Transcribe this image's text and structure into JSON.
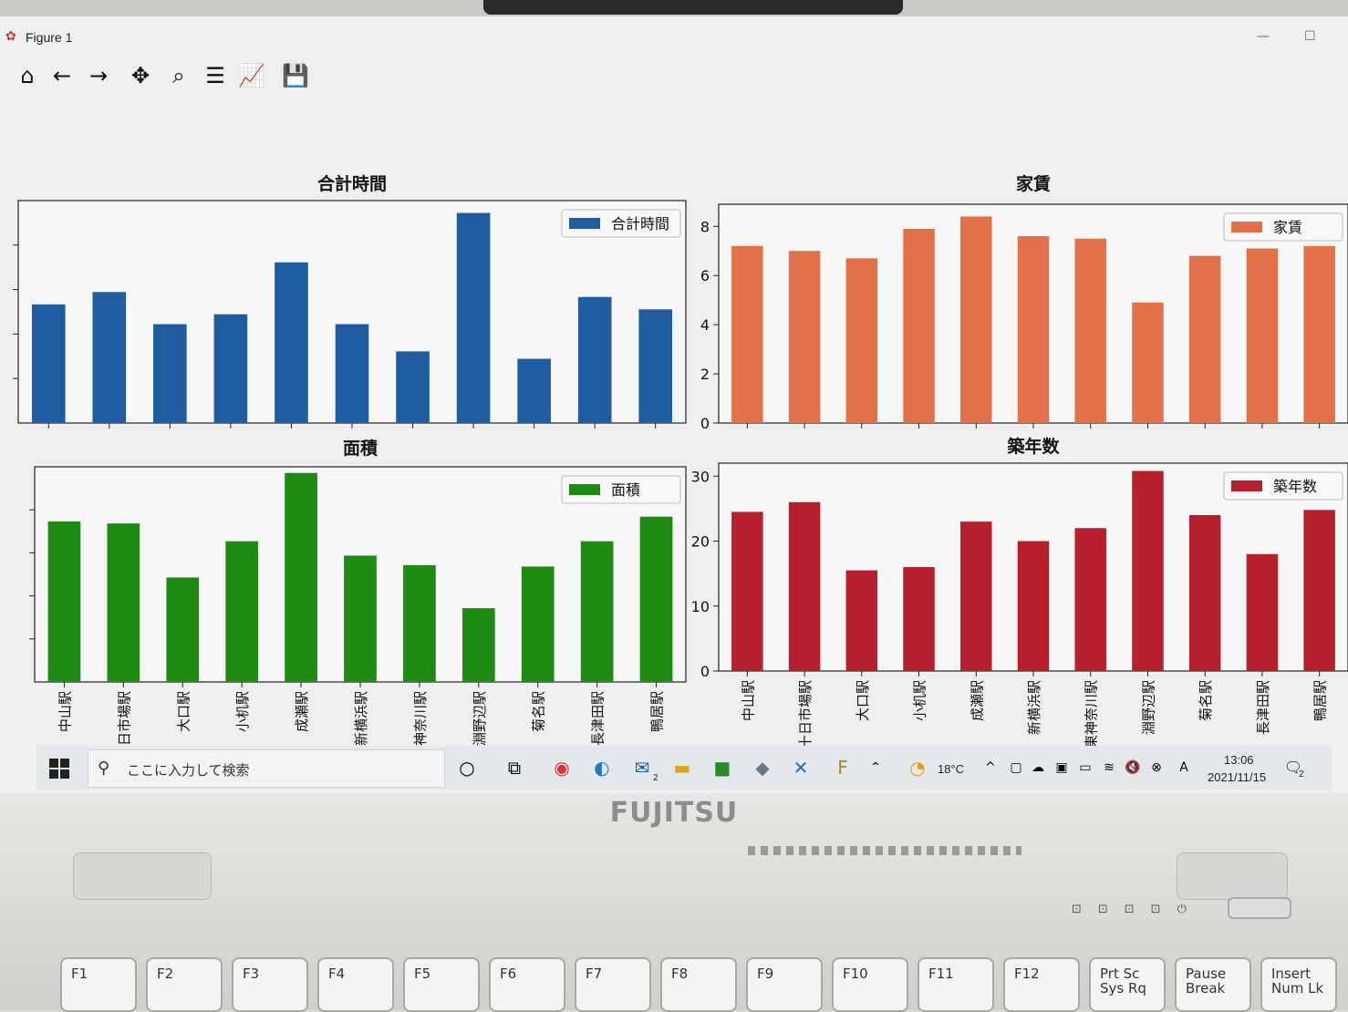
{
  "window": {
    "title": "Figure 1",
    "toolbar": [
      {
        "name": "home-icon",
        "glyph": "⌂"
      },
      {
        "name": "back-arrow-icon",
        "glyph": "←"
      },
      {
        "name": "forward-arrow-icon",
        "glyph": "→"
      },
      {
        "name": "pan-icon",
        "glyph": "✥"
      },
      {
        "name": "zoom-icon",
        "glyph": "⌕"
      },
      {
        "name": "configure-subplots-icon",
        "glyph": "☰"
      },
      {
        "name": "edit-axis-icon",
        "glyph": "📈"
      },
      {
        "name": "save-icon",
        "glyph": "💾"
      }
    ]
  },
  "chart_data": [
    {
      "type": "bar",
      "title": "合計時間",
      "legend": "合計時間",
      "legend_position": "top-right",
      "color": "#1f5da0",
      "categories": [
        "中山駅",
        "十日市場駅",
        "大口駅",
        "小机駅",
        "成瀬駅",
        "新横浜駅",
        "東神奈川駅",
        "淵野辺駅",
        "菊名駅",
        "長津田駅",
        "鴨居駅"
      ],
      "values": [
        48,
        53,
        40,
        44,
        65,
        40,
        29,
        85,
        26,
        51,
        46
      ],
      "ylim": [
        0,
        90
      ],
      "ytick_labels_visible": false,
      "xtick_labels_visible": false
    },
    {
      "type": "bar",
      "title": "家賃",
      "legend": "家賃",
      "legend_position": "top-right",
      "color": "#e2714a",
      "categories": [
        "中山駅",
        "十日市場駅",
        "大口駅",
        "小机駅",
        "成瀬駅",
        "新横浜駅",
        "東神奈川駅",
        "淵野辺駅",
        "菊名駅",
        "長津田駅",
        "鴨居駅"
      ],
      "values": [
        7.2,
        7.0,
        6.7,
        7.9,
        8.4,
        7.6,
        7.5,
        4.9,
        6.8,
        7.1,
        7.2
      ],
      "ylim": [
        0,
        8.9
      ],
      "yticks": [
        0,
        2,
        4,
        6,
        8
      ],
      "xtick_labels_visible": false
    },
    {
      "type": "bar",
      "title": "面積",
      "legend": "面積",
      "legend_position": "top-right",
      "color": "#1f8a14",
      "categories": [
        "中山駅",
        "十日市場駅",
        "大口駅",
        "小机駅",
        "成瀬駅",
        "新横浜駅",
        "東神奈川駅",
        "淵野辺駅",
        "菊名駅",
        "長津田駅",
        "鴨居駅"
      ],
      "values": [
        23.5,
        23.2,
        15.3,
        20.6,
        30.6,
        18.5,
        17.1,
        10.8,
        16.9,
        20.6,
        24.2
      ],
      "ylim": [
        0,
        31.5
      ],
      "ytick_labels_visible": false
    },
    {
      "type": "bar",
      "title": "築年数",
      "legend": "築年数",
      "legend_position": "top-right",
      "color": "#b5202c",
      "categories": [
        "中山駅",
        "十日市場駅",
        "大口駅",
        "小机駅",
        "成瀬駅",
        "新横浜駅",
        "東神奈川駅",
        "淵野辺駅",
        "菊名駅",
        "長津田駅",
        "鴨居駅"
      ],
      "values": [
        24.5,
        26.0,
        15.5,
        16.0,
        23.0,
        20.0,
        22.0,
        30.8,
        24.0,
        18.0,
        24.8
      ],
      "ylim": [
        0,
        32
      ],
      "yticks": [
        0,
        10,
        20,
        30
      ]
    }
  ],
  "taskbar": {
    "search_placeholder": "ここに入力して検索",
    "temperature": "18°C",
    "time": "13:06",
    "date": "2021/11/15",
    "mail_badge": "2",
    "notif_badge": "2"
  },
  "laptop": {
    "brand": "FUJITSU",
    "keys": [
      "F1",
      "F2",
      "F3",
      "F4",
      "F5",
      "F6",
      "F7",
      "F8",
      "F9",
      "F10",
      "F11",
      "F12",
      "Prt Sc Sys Rq",
      "Pause Break",
      "Insert Num Lk"
    ]
  }
}
